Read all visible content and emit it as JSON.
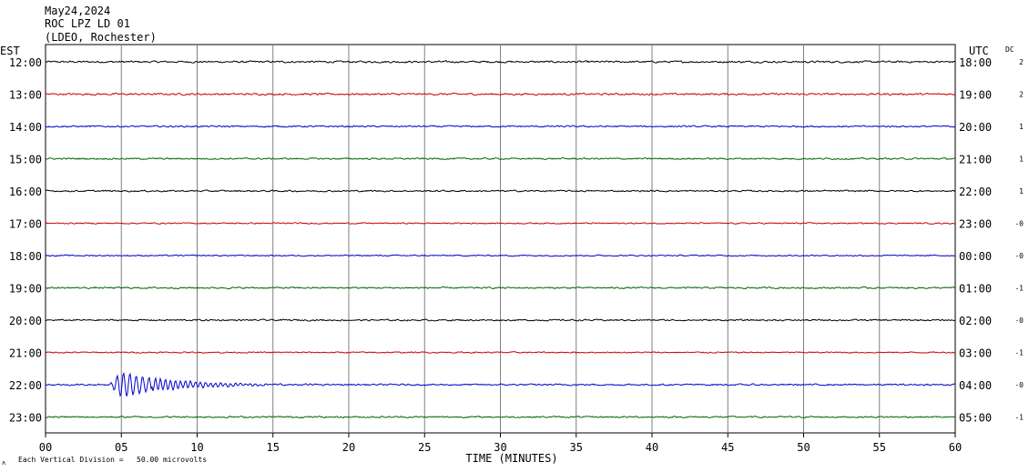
{
  "header": {
    "date": "May24,2024",
    "station": "ROC LPZ LD 01",
    "network": "(LDEO, Rochester)"
  },
  "left_axis_label": "EST",
  "right_axis_label": "UTC",
  "dc_label": "DC",
  "footer": {
    "corner_mark": "ʌ",
    "scale_note": "Each Vertical Division =   50.00 microvolts"
  },
  "colors": {
    "black": "#000000",
    "red": "#cc0000",
    "blue": "#0000cc",
    "green": "#006600",
    "grid": "#808080"
  },
  "chart_data": {
    "type": "line",
    "title": "ROC LPZ LD 01",
    "xlabel": "TIME (MINUTES)",
    "xlim": [
      0,
      60
    ],
    "x_ticks": [
      "00",
      "05",
      "10",
      "15",
      "20",
      "25",
      "30",
      "35",
      "40",
      "45",
      "50",
      "55",
      "60"
    ],
    "grid": true,
    "traces": [
      {
        "est": "12:00",
        "utc": "18:00",
        "dc": "2",
        "color": "black",
        "amplitude": 0.12
      },
      {
        "est": "13:00",
        "utc": "19:00",
        "dc": "2",
        "color": "red",
        "amplitude": 0.12
      },
      {
        "est": "14:00",
        "utc": "20:00",
        "dc": "1",
        "color": "blue",
        "amplitude": 0.1
      },
      {
        "est": "15:00",
        "utc": "21:00",
        "dc": "1",
        "color": "green",
        "amplitude": 0.1
      },
      {
        "est": "16:00",
        "utc": "22:00",
        "dc": "1",
        "color": "black",
        "amplitude": 0.1
      },
      {
        "est": "17:00",
        "utc": "23:00",
        "dc": "-0",
        "color": "red",
        "amplitude": 0.08
      },
      {
        "est": "18:00",
        "utc": "00:00",
        "dc": "-0",
        "color": "blue",
        "amplitude": 0.08
      },
      {
        "est": "19:00",
        "utc": "01:00",
        "dc": "-1",
        "color": "green",
        "amplitude": 0.1
      },
      {
        "est": "20:00",
        "utc": "02:00",
        "dc": "-0",
        "color": "black",
        "amplitude": 0.1
      },
      {
        "est": "21:00",
        "utc": "03:00",
        "dc": "-1",
        "color": "red",
        "amplitude": 0.08
      },
      {
        "est": "22:00",
        "utc": "04:00",
        "dc": "-0",
        "color": "blue",
        "amplitude": 0.1,
        "event": {
          "onset_min": 4.2,
          "peak_min": 5.0,
          "peak_amplitude": 1.0,
          "coda_end_min": 20.5
        }
      },
      {
        "est": "23:00",
        "utc": "05:00",
        "dc": "-1",
        "color": "green",
        "amplitude": 0.1
      }
    ]
  }
}
